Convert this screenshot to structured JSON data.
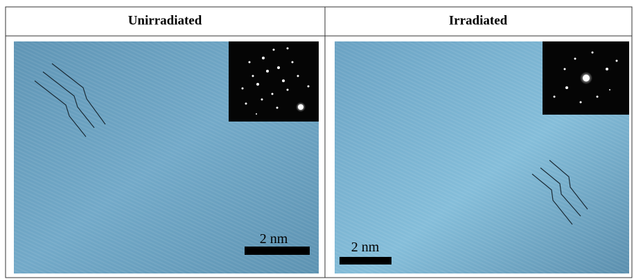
{
  "table": {
    "headers": [
      "Unirradiated",
      "Irradiated"
    ],
    "cells": [
      {
        "scale_bar": "2 nm"
      },
      {
        "scale_bar": "2 nm"
      }
    ]
  }
}
